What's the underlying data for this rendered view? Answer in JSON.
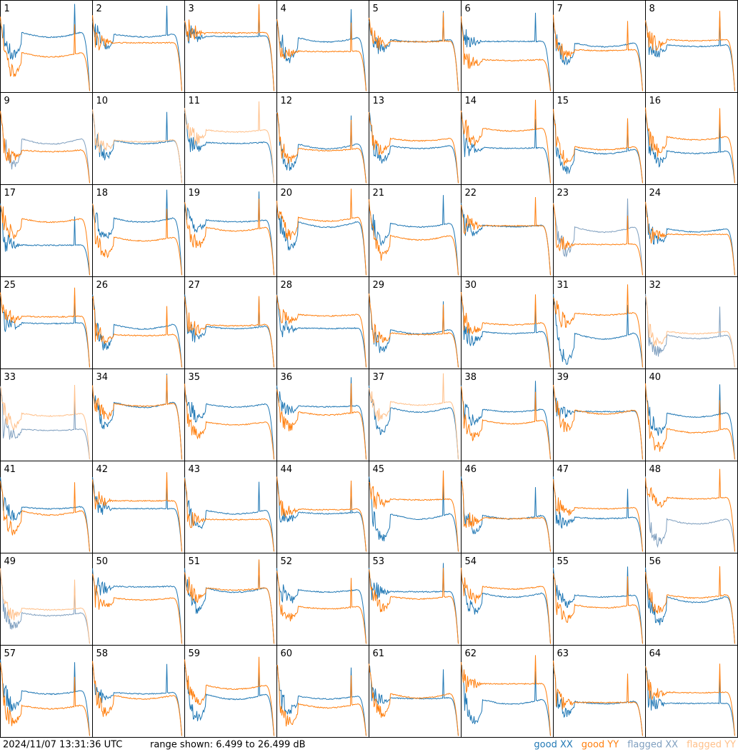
{
  "panels": [
    {
      "label": "1",
      "xx": "good",
      "yy": "good"
    },
    {
      "label": "2",
      "xx": "good",
      "yy": "good"
    },
    {
      "label": "3",
      "xx": "good",
      "yy": "good"
    },
    {
      "label": "4",
      "xx": "good",
      "yy": "good"
    },
    {
      "label": "5",
      "xx": "good",
      "yy": "good"
    },
    {
      "label": "6",
      "xx": "good",
      "yy": "good"
    },
    {
      "label": "7",
      "xx": "good",
      "yy": "good"
    },
    {
      "label": "8",
      "xx": "good",
      "yy": "good"
    },
    {
      "label": "9",
      "xx": "flagged",
      "yy": "good"
    },
    {
      "label": "10",
      "xx": "good",
      "yy": "flagged"
    },
    {
      "label": "11",
      "xx": "good",
      "yy": "flagged"
    },
    {
      "label": "12",
      "xx": "good",
      "yy": "good"
    },
    {
      "label": "13",
      "xx": "good",
      "yy": "good"
    },
    {
      "label": "14",
      "xx": "good",
      "yy": "good"
    },
    {
      "label": "15",
      "xx": "good",
      "yy": "good"
    },
    {
      "label": "16",
      "xx": "good",
      "yy": "good"
    },
    {
      "label": "17",
      "xx": "good",
      "yy": "good"
    },
    {
      "label": "18",
      "xx": "good",
      "yy": "good"
    },
    {
      "label": "19",
      "xx": "good",
      "yy": "good"
    },
    {
      "label": "20",
      "xx": "good",
      "yy": "good"
    },
    {
      "label": "21",
      "xx": "good",
      "yy": "good"
    },
    {
      "label": "22",
      "xx": "good",
      "yy": "good"
    },
    {
      "label": "23",
      "xx": "flagged",
      "yy": "good"
    },
    {
      "label": "24",
      "xx": "good",
      "yy": "good"
    },
    {
      "label": "25",
      "xx": "good",
      "yy": "good"
    },
    {
      "label": "26",
      "xx": "good",
      "yy": "good"
    },
    {
      "label": "27",
      "xx": "good",
      "yy": "good"
    },
    {
      "label": "28",
      "xx": "good",
      "yy": "good"
    },
    {
      "label": "29",
      "xx": "good",
      "yy": "good"
    },
    {
      "label": "30",
      "xx": "good",
      "yy": "good"
    },
    {
      "label": "31",
      "xx": "good",
      "yy": "good"
    },
    {
      "label": "32",
      "xx": "flagged",
      "yy": "flagged"
    },
    {
      "label": "33",
      "xx": "flagged",
      "yy": "flagged"
    },
    {
      "label": "34",
      "xx": "good",
      "yy": "good"
    },
    {
      "label": "35",
      "xx": "good",
      "yy": "good"
    },
    {
      "label": "36",
      "xx": "good",
      "yy": "good"
    },
    {
      "label": "37",
      "xx": "good",
      "yy": "flagged"
    },
    {
      "label": "38",
      "xx": "good",
      "yy": "good"
    },
    {
      "label": "39",
      "xx": "good",
      "yy": "good"
    },
    {
      "label": "40",
      "xx": "good",
      "yy": "good"
    },
    {
      "label": "41",
      "xx": "good",
      "yy": "good"
    },
    {
      "label": "42",
      "xx": "good",
      "yy": "good"
    },
    {
      "label": "43",
      "xx": "good",
      "yy": "good"
    },
    {
      "label": "44",
      "xx": "good",
      "yy": "good"
    },
    {
      "label": "45",
      "xx": "good",
      "yy": "good"
    },
    {
      "label": "46",
      "xx": "good",
      "yy": "good"
    },
    {
      "label": "47",
      "xx": "good",
      "yy": "good"
    },
    {
      "label": "48",
      "xx": "flagged",
      "yy": "good"
    },
    {
      "label": "49",
      "xx": "flagged",
      "yy": "flagged"
    },
    {
      "label": "50",
      "xx": "good",
      "yy": "good"
    },
    {
      "label": "51",
      "xx": "good",
      "yy": "good"
    },
    {
      "label": "52",
      "xx": "good",
      "yy": "good"
    },
    {
      "label": "53",
      "xx": "good",
      "yy": "good"
    },
    {
      "label": "54",
      "xx": "good",
      "yy": "good"
    },
    {
      "label": "55",
      "xx": "good",
      "yy": "good"
    },
    {
      "label": "56",
      "xx": "good",
      "yy": "good"
    },
    {
      "label": "57",
      "xx": "good",
      "yy": "good"
    },
    {
      "label": "58",
      "xx": "good",
      "yy": "good"
    },
    {
      "label": "59",
      "xx": "good",
      "yy": "good"
    },
    {
      "label": "60",
      "xx": "good",
      "yy": "good"
    },
    {
      "label": "61",
      "xx": "good",
      "yy": "good"
    },
    {
      "label": "62",
      "xx": "good",
      "yy": "good"
    },
    {
      "label": "63",
      "xx": "good",
      "yy": "good"
    },
    {
      "label": "64",
      "xx": "good",
      "yy": "good"
    }
  ],
  "footer": {
    "timestamp": "2024/11/07 13:31:36 UTC",
    "range": "range shown: 6.499 to 26.499 dB"
  },
  "legend": [
    {
      "label": "good XX",
      "status": "good",
      "pol": "xx",
      "color": "#1f77b4"
    },
    {
      "label": "good YY",
      "status": "good",
      "pol": "yy",
      "color": "#ff7f0e"
    },
    {
      "label": "flagged XX",
      "status": "flagged",
      "pol": "xx",
      "color": "#7f9fbf"
    },
    {
      "label": "flagged YY",
      "status": "flagged",
      "pol": "yy",
      "color": "#ffc08a"
    }
  ]
}
